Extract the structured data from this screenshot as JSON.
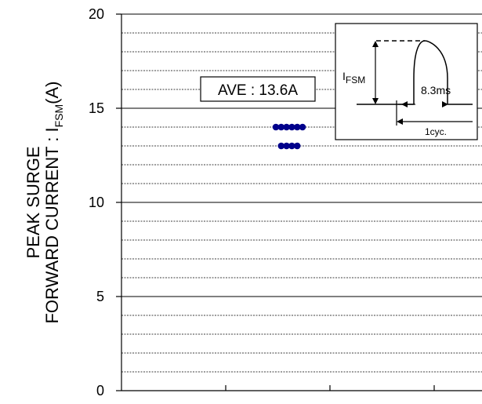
{
  "chart_data": {
    "type": "scatter",
    "title": "",
    "ylabel_line1": "PEAK SURGE",
    "ylabel_line2_main": "FORWARD CURRENT : I",
    "ylabel_line2_sub": "FSM",
    "ylabel_line2_end": "(A)",
    "xlabel": "",
    "ylim": [
      0,
      20
    ],
    "y_major_ticks": [
      0,
      5,
      10,
      15,
      20
    ],
    "y_minor_step": 1,
    "x_tick_count": 4,
    "grid": "horizontal dotted",
    "marker_color": "#00008b",
    "points_y": [
      14,
      14,
      14,
      14,
      14,
      14,
      13,
      13,
      13,
      13
    ],
    "average_label": "AVE : 13.6A",
    "inset": {
      "peak_label_main": "I",
      "peak_label_sub": "FSM",
      "pulse_width_label": "8.3ms",
      "cycle_label": "1cyc."
    }
  }
}
